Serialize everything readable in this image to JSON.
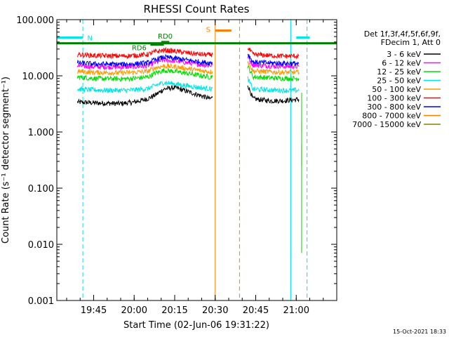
{
  "chart_data": {
    "type": "line",
    "title": "RHESSI Count Rates",
    "xlabel": "Start Time (02-Jun-06 19:31:22)",
    "ylabel": "Count Rate (s⁻¹ detector segment⁻¹)",
    "yscale": "log",
    "ylim": [
      0.001,
      100
    ],
    "xlim": [
      "19:31:22",
      "21:15:00"
    ],
    "x_ticks": [
      "19:45",
      "20:00",
      "20:15",
      "20:30",
      "20:45",
      "21:00"
    ],
    "y_ticks": [
      "0.001",
      "0.010",
      "0.100",
      "1.000",
      "10.000",
      "100.000"
    ],
    "legend_header": [
      "Det 1f,3f,4f,5f,6f,9f,",
      "FDecim 1, Att 0"
    ],
    "legend_position": "right",
    "footer": "15-Oct-2021 18:33",
    "series": [
      {
        "name": "3 - 6 keV",
        "color": "#000000",
        "segments": [
          {
            "x": [
              "19:39",
              "19:45",
              "19:55",
              "20:00",
              "20:05",
              "20:08",
              "20:11",
              "20:15",
              "20:20",
              "20:25",
              "20:28",
              "20:29"
            ],
            "y": [
              3.4,
              3.3,
              3.2,
              3.4,
              3.9,
              4.6,
              5.8,
              6.2,
              5.2,
              4.4,
              3.9,
              4.1
            ]
          },
          {
            "x": [
              "20:42",
              "20:44",
              "20:50",
              "20:55",
              "21:01"
            ],
            "y": [
              7.0,
              3.9,
              3.6,
              3.6,
              3.8
            ]
          }
        ]
      },
      {
        "name": "6 - 12 keV",
        "color": "#ff00ff",
        "segments": [
          {
            "x": [
              "19:39",
              "19:45",
              "19:55",
              "20:00",
              "20:05",
              "20:08",
              "20:11",
              "20:15",
              "20:20",
              "20:25",
              "20:28",
              "20:29"
            ],
            "y": [
              15,
              14.5,
              14.3,
              14.5,
              15,
              17.5,
              19,
              18.5,
              17,
              15.8,
              15.3,
              15.5
            ]
          },
          {
            "x": [
              "20:42",
              "20:44",
              "20:50",
              "20:55",
              "21:01"
            ],
            "y": [
              22,
              15.5,
              15,
              14.8,
              14.6
            ]
          }
        ]
      },
      {
        "name": "12 - 25 keV",
        "color": "#00dd00",
        "segments": [
          {
            "x": [
              "19:39",
              "19:45",
              "19:55",
              "20:00",
              "20:05",
              "20:08",
              "20:11",
              "20:15",
              "20:20",
              "20:25",
              "20:28",
              "20:29"
            ],
            "y": [
              9.5,
              9.0,
              8.8,
              9.0,
              9.5,
              11.2,
              12.5,
              12,
              11,
              10,
              9.5,
              9.8
            ]
          },
          {
            "x": [
              "20:42",
              "20:44",
              "20:50",
              "20:55",
              "21:01"
            ],
            "y": [
              15,
              9.6,
              9.2,
              9.0,
              9.0
            ]
          }
        ]
      },
      {
        "name": "25 - 50 keV",
        "color": "#00e5e5",
        "segments": [
          {
            "x": [
              "19:39",
              "19:45",
              "19:55",
              "20:00",
              "20:05",
              "20:08",
              "20:11",
              "20:15",
              "20:20",
              "20:25",
              "20:28",
              "20:29"
            ],
            "y": [
              5.8,
              5.6,
              5.5,
              5.6,
              5.9,
              6.8,
              7.6,
              7.2,
              6.6,
              6.1,
              5.9,
              6.0
            ]
          },
          {
            "x": [
              "20:42",
              "20:44",
              "20:50",
              "20:55",
              "21:01"
            ],
            "y": [
              9.0,
              5.8,
              5.6,
              5.5,
              5.5
            ]
          }
        ]
      },
      {
        "name": "50 - 100 keV",
        "color": "#ff9900",
        "segments": [
          {
            "x": [
              "19:39",
              "19:45",
              "19:55",
              "20:00",
              "20:05",
              "20:08",
              "20:11",
              "20:15",
              "20:20",
              "20:25",
              "20:28",
              "20:29"
            ],
            "y": [
              12,
              11.5,
              11.3,
              11.5,
              12,
              14,
              15,
              14.5,
              13.3,
              12.3,
              11.8,
              12
            ]
          },
          {
            "x": [
              "20:42",
              "20:44",
              "20:50",
              "20:55",
              "21:01"
            ],
            "y": [
              18,
              12.2,
              11.8,
              11.5,
              11.5
            ]
          }
        ]
      },
      {
        "name": "100 - 300 keV",
        "color": "#ff0000",
        "segments": [
          {
            "x": [
              "19:39",
              "19:45",
              "19:55",
              "20:00",
              "20:05",
              "20:08",
              "20:11",
              "20:15",
              "20:20",
              "20:25",
              "20:28",
              "20:29"
            ],
            "y": [
              24,
              23,
              22.5,
              23,
              24,
              27,
              28.5,
              27.5,
              25.5,
              24,
              23.5,
              24
            ]
          },
          {
            "x": [
              "20:42",
              "20:44",
              "20:50",
              "20:55",
              "21:01"
            ],
            "y": [
              32,
              24,
              23,
              22.5,
              22.5
            ]
          }
        ]
      },
      {
        "name": "300 - 800 keV",
        "color": "#0000ff",
        "segments": [
          {
            "x": [
              "19:39",
              "19:45",
              "19:55",
              "20:00",
              "20:05",
              "20:08",
              "20:11",
              "20:15",
              "20:20",
              "20:25",
              "20:28",
              "20:29"
            ],
            "y": [
              17,
              16.3,
              16,
              16.3,
              17,
              19.5,
              21.5,
              20.5,
              19,
              17.5,
              17,
              17.3
            ]
          },
          {
            "x": [
              "20:42",
              "20:44",
              "20:50",
              "20:55",
              "21:01"
            ],
            "y": [
              25,
              17.5,
              17,
              16.8,
              16.5
            ]
          }
        ]
      },
      {
        "name": "800 - 7000 keV",
        "color": "#ff8000",
        "segments": [
          {
            "x": [
              "21:02",
              "21:02"
            ],
            "y": [
              1.5,
              1.0
            ]
          }
        ]
      },
      {
        "name": "7000 - 15000 keV",
        "color": "#808000",
        "segments": [
          {
            "x": [
              "21:02",
              "21:02"
            ],
            "y": [
              0.6,
              0.25
            ]
          }
        ]
      }
    ],
    "flag_bars": [
      {
        "label": "N",
        "color": "#00e5e5",
        "ranges": [
          [
            "19:31:22",
            "19:41"
          ],
          [
            "21:00",
            "21:05"
          ]
        ],
        "y": 48
      },
      {
        "label": "S",
        "color": "#ff8000",
        "ranges": [
          [
            "20:30",
            "20:36"
          ]
        ],
        "y": 64
      },
      {
        "label": "RD6",
        "color": "#008000",
        "ranges": [
          [
            "20:06",
            "20:11"
          ]
        ],
        "y": 36
      },
      {
        "label": "RD0",
        "color": "#008000",
        "ranges": [
          [
            "20:10",
            "20:13"
          ]
        ],
        "y": 40
      }
    ],
    "attenuator_bar": {
      "color": "#008000",
      "range": [
        "19:31:22",
        "21:15:00"
      ],
      "y": 38
    },
    "vertical_markers": [
      {
        "x": "19:31:22",
        "color": "#00e5e5",
        "style": "solid"
      },
      {
        "x": "19:41",
        "color": "#00e5e5",
        "style": "dashed"
      },
      {
        "x": "20:30",
        "color": "#ff8000",
        "style": "solid"
      },
      {
        "x": "20:39",
        "color": "#ff8000",
        "style": "dashed"
      },
      {
        "x": "20:58",
        "color": "#00e5e5",
        "style": "solid"
      },
      {
        "x": "21:04",
        "color": "#00e5e5",
        "style": "dashed"
      }
    ],
    "end_drop": {
      "x": "21:02",
      "color": "#00dd00",
      "y": [
        5.0,
        0.007
      ]
    }
  }
}
